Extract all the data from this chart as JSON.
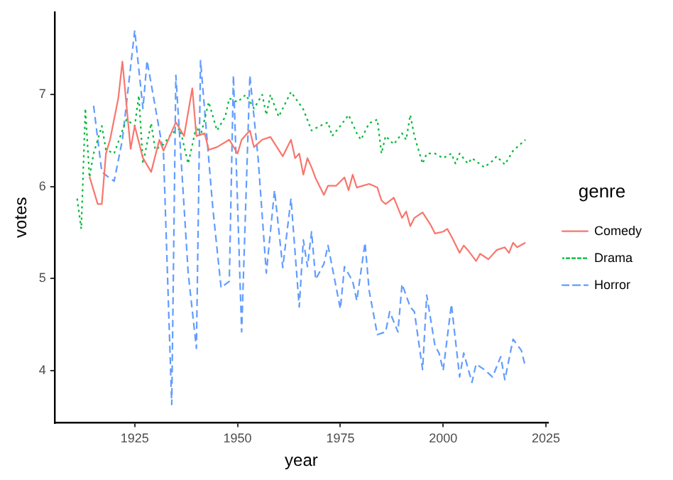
{
  "chart_data": {
    "type": "line",
    "xlabel": "year",
    "ylabel": "votes",
    "legend_title": "genre",
    "legend": "right",
    "grid": false,
    "marker": "none",
    "xlim": [
      1905.5,
      2025.5
    ],
    "xticks": [
      1925,
      1950,
      1975,
      2000,
      2025
    ],
    "ylim": [
      3.43,
      7.9
    ],
    "yticks": [
      4,
      5,
      6,
      7
    ],
    "series": [
      {
        "name": "Comedy",
        "color": "#f8766d",
        "line_style": "solid",
        "x": [
          1914,
          1916,
          1917,
          1918,
          1919,
          1921,
          1922,
          1924,
          1925,
          1927,
          1929,
          1931,
          1932,
          1935,
          1937,
          1939,
          1940,
          1942,
          1943,
          1945,
          1948,
          1950,
          1951,
          1953,
          1954,
          1956,
          1958,
          1961,
          1963,
          1964,
          1965,
          1966,
          1967,
          1968,
          1969,
          1971,
          1972,
          1974,
          1976,
          1977,
          1978,
          1979,
          1982,
          1984,
          1985,
          1986,
          1988,
          1990,
          1991,
          1992,
          1993,
          1995,
          1997,
          1998,
          2000,
          2001,
          2002,
          2004,
          2005,
          2006,
          2008,
          2009,
          2010,
          2011,
          2013,
          2015,
          2016,
          2017,
          2018,
          2020
        ],
        "values": [
          6.11,
          5.81,
          5.81,
          6.36,
          6.51,
          6.96,
          7.36,
          6.41,
          6.66,
          6.31,
          6.16,
          6.51,
          6.39,
          6.7,
          6.55,
          7.07,
          6.55,
          6.58,
          6.4,
          6.43,
          6.51,
          6.36,
          6.51,
          6.61,
          6.43,
          6.51,
          6.54,
          6.33,
          6.51,
          6.31,
          6.36,
          6.13,
          6.31,
          6.21,
          6.09,
          5.91,
          6.01,
          6.01,
          6.1,
          5.96,
          6.13,
          5.99,
          6.03,
          5.99,
          5.85,
          5.81,
          5.88,
          5.66,
          5.73,
          5.57,
          5.66,
          5.72,
          5.58,
          5.49,
          5.51,
          5.54,
          5.46,
          5.28,
          5.36,
          5.31,
          5.19,
          5.27,
          5.24,
          5.21,
          5.31,
          5.34,
          5.28,
          5.39,
          5.34,
          5.39
        ]
      },
      {
        "name": "Drama",
        "color": "#00ba38",
        "line_style": "dotted",
        "x": [
          1911,
          1912,
          1913,
          1914,
          1915,
          1917,
          1918,
          1920,
          1922,
          1923,
          1925,
          1926,
          1927,
          1929,
          1930,
          1932,
          1934,
          1936,
          1938,
          1940,
          1941,
          1943,
          1945,
          1947,
          1948,
          1950,
          1952,
          1954,
          1956,
          1957,
          1958,
          1960,
          1963,
          1966,
          1968,
          1970,
          1972,
          1973,
          1975,
          1977,
          1979,
          1980,
          1982,
          1984,
          1985,
          1986,
          1988,
          1990,
          1991,
          1992,
          1993,
          1995,
          1996,
          1998,
          2000,
          2002,
          2003,
          2004,
          2006,
          2007,
          2010,
          2012,
          2013,
          2015,
          2017,
          2018,
          2020
        ],
        "values": [
          5.87,
          5.54,
          6.85,
          6.1,
          6.36,
          6.66,
          6.4,
          6.36,
          6.61,
          6.73,
          6.66,
          6.99,
          6.25,
          6.69,
          6.4,
          6.46,
          6.58,
          6.63,
          6.25,
          6.66,
          6.55,
          6.92,
          6.61,
          6.76,
          6.96,
          6.92,
          7.0,
          6.85,
          7.0,
          6.78,
          7.0,
          6.76,
          7.03,
          6.84,
          6.61,
          6.66,
          6.7,
          6.55,
          6.66,
          6.78,
          6.58,
          6.51,
          6.69,
          6.73,
          6.36,
          6.55,
          6.46,
          6.58,
          6.51,
          6.78,
          6.55,
          6.25,
          6.36,
          6.36,
          6.31,
          6.36,
          6.25,
          6.36,
          6.25,
          6.31,
          6.21,
          6.28,
          6.33,
          6.24,
          6.39,
          6.43,
          6.51
        ]
      },
      {
        "name": "Horror",
        "color": "#619cff",
        "line_style": "dashed",
        "x": [
          1915,
          1917,
          1919,
          1920,
          1922,
          1925,
          1927,
          1928,
          1932,
          1934,
          1935,
          1938,
          1940,
          1941,
          1944,
          1946,
          1948,
          1949,
          1951,
          1953,
          1955,
          1957,
          1959,
          1961,
          1963,
          1965,
          1966,
          1967,
          1968,
          1969,
          1971,
          1972,
          1975,
          1976,
          1978,
          1979,
          1981,
          1982,
          1984,
          1986,
          1987,
          1989,
          1990,
          1992,
          1993,
          1995,
          1996,
          1998,
          1999,
          2000,
          2002,
          2004,
          2005,
          2007,
          2008,
          2010,
          2012,
          2014,
          2015,
          2017,
          2019,
          2020
        ],
        "values": [
          6.88,
          6.16,
          6.09,
          6.06,
          6.51,
          7.7,
          6.85,
          7.37,
          6.36,
          3.63,
          7.21,
          5.06,
          4.24,
          7.37,
          5.76,
          4.9,
          4.97,
          7.21,
          4.42,
          7.21,
          6.31,
          5.06,
          5.96,
          5.12,
          5.87,
          4.69,
          5.42,
          5.13,
          5.51,
          4.99,
          5.16,
          5.36,
          4.67,
          5.13,
          4.97,
          4.76,
          5.39,
          4.87,
          4.39,
          4.42,
          4.64,
          4.42,
          4.94,
          4.69,
          4.64,
          4.01,
          4.82,
          4.27,
          4.19,
          4.0,
          4.72,
          3.93,
          4.19,
          3.87,
          4.07,
          4.01,
          3.93,
          4.15,
          3.9,
          4.34,
          4.22,
          4.04
        ]
      }
    ]
  }
}
